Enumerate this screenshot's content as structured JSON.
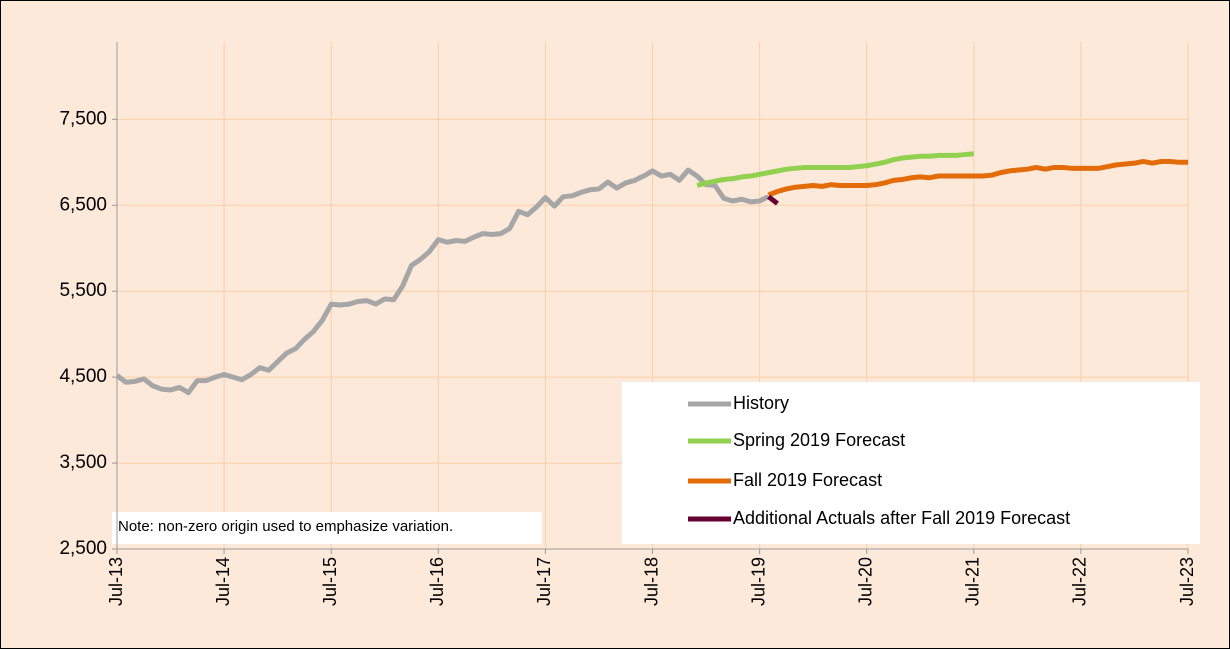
{
  "chart_data": {
    "type": "line",
    "note": "Note: non-zero origin used to emphasize variation.",
    "categories": [
      "Jul-13",
      null,
      null,
      null,
      null,
      null,
      null,
      null,
      null,
      null,
      null,
      null,
      "Jul-14",
      null,
      null,
      null,
      null,
      null,
      null,
      null,
      null,
      null,
      null,
      null,
      "Jul-15",
      null,
      null,
      null,
      null,
      null,
      null,
      null,
      null,
      null,
      null,
      null,
      "Jul-16",
      null,
      null,
      null,
      null,
      null,
      null,
      null,
      null,
      null,
      null,
      null,
      "Jul-17",
      null,
      null,
      null,
      null,
      null,
      null,
      null,
      null,
      null,
      null,
      null,
      "Jul-18",
      null,
      null,
      null,
      null,
      null,
      null,
      null,
      null,
      null,
      null,
      null,
      "Jul-19",
      null,
      null,
      null,
      null,
      null,
      null,
      null,
      null,
      null,
      null,
      null,
      "Jul-20",
      null,
      null,
      null,
      null,
      null,
      null,
      null,
      null,
      null,
      null,
      null,
      "Jul-21",
      null,
      null,
      null,
      null,
      null,
      null,
      null,
      null,
      null,
      null,
      null,
      "Jul-22",
      null,
      null,
      null,
      null,
      null,
      null,
      null,
      null,
      null,
      null,
      null,
      "Jul-23"
    ],
    "series": [
      {
        "name": "History",
        "color": "#a6a6a6",
        "values": [
          4520,
          4440,
          4450,
          4480,
          4400,
          4360,
          4350,
          4380,
          4320,
          4460,
          4460,
          4500,
          4530,
          4500,
          4470,
          4530,
          4610,
          4580,
          4680,
          4780,
          4830,
          4940,
          5030,
          5160,
          5350,
          5340,
          5350,
          5380,
          5390,
          5350,
          5410,
          5400,
          5560,
          5800,
          5870,
          5960,
          6100,
          6070,
          6090,
          6080,
          6130,
          6170,
          6160,
          6170,
          6230,
          6430,
          6390,
          6480,
          6590,
          6490,
          6600,
          6610,
          6650,
          6680,
          6690,
          6770,
          6700,
          6760,
          6790,
          6840,
          6900,
          6840,
          6860,
          6790,
          6910,
          6840,
          6740,
          6730,
          6580,
          6550,
          6570,
          6540,
          6550,
          6600,
          null,
          null,
          null,
          null,
          null,
          null,
          null,
          null,
          null,
          null,
          null,
          null,
          null,
          null,
          null,
          null,
          null,
          null,
          null,
          null,
          null,
          null,
          null,
          null,
          null,
          null,
          null,
          null,
          null,
          null,
          null,
          null,
          null,
          null,
          null,
          null,
          null,
          null,
          null,
          null,
          null,
          null,
          null,
          null,
          null,
          null,
          null
        ]
      },
      {
        "name": "Spring 2019 Forecast",
        "color": "#92d050",
        "values": [
          null,
          null,
          null,
          null,
          null,
          null,
          null,
          null,
          null,
          null,
          null,
          null,
          null,
          null,
          null,
          null,
          null,
          null,
          null,
          null,
          null,
          null,
          null,
          null,
          null,
          null,
          null,
          null,
          null,
          null,
          null,
          null,
          null,
          null,
          null,
          null,
          null,
          null,
          null,
          null,
          null,
          null,
          null,
          null,
          null,
          null,
          null,
          null,
          null,
          null,
          null,
          null,
          null,
          null,
          null,
          null,
          null,
          null,
          null,
          null,
          null,
          null,
          null,
          null,
          null,
          6730,
          6760,
          6780,
          6800,
          6810,
          6830,
          6840,
          6860,
          6880,
          6900,
          6920,
          6930,
          6940,
          6940,
          6940,
          6940,
          6940,
          6940,
          6950,
          6960,
          6980,
          7000,
          7030,
          7050,
          7060,
          7070,
          7070,
          7080,
          7080,
          7080,
          7090,
          7100,
          null,
          null,
          null,
          null,
          null,
          null,
          null,
          null,
          null,
          null,
          null,
          null,
          null,
          null,
          null,
          null,
          null,
          null,
          null,
          null,
          null,
          null,
          null,
          null
        ]
      },
      {
        "name": "Fall 2019 Forecast",
        "color": "#e36c09",
        "values": [
          null,
          null,
          null,
          null,
          null,
          null,
          null,
          null,
          null,
          null,
          null,
          null,
          null,
          null,
          null,
          null,
          null,
          null,
          null,
          null,
          null,
          null,
          null,
          null,
          null,
          null,
          null,
          null,
          null,
          null,
          null,
          null,
          null,
          null,
          null,
          null,
          null,
          null,
          null,
          null,
          null,
          null,
          null,
          null,
          null,
          null,
          null,
          null,
          null,
          null,
          null,
          null,
          null,
          null,
          null,
          null,
          null,
          null,
          null,
          null,
          null,
          null,
          null,
          null,
          null,
          null,
          null,
          null,
          null,
          null,
          null,
          null,
          null,
          6620,
          6660,
          6690,
          6710,
          6720,
          6730,
          6720,
          6740,
          6730,
          6730,
          6730,
          6730,
          6740,
          6760,
          6790,
          6800,
          6820,
          6830,
          6820,
          6840,
          6840,
          6840,
          6840,
          6840,
          6840,
          6850,
          6880,
          6900,
          6910,
          6920,
          6940,
          6920,
          6940,
          6940,
          6930,
          6930,
          6930,
          6930,
          6950,
          6970,
          6980,
          6990,
          7010,
          6990,
          7010,
          7010,
          7000,
          7000
        ]
      },
      {
        "name": "Additional Actuals after Fall 2019 Forecast",
        "color": "#660033",
        "values": [
          null,
          null,
          null,
          null,
          null,
          null,
          null,
          null,
          null,
          null,
          null,
          null,
          null,
          null,
          null,
          null,
          null,
          null,
          null,
          null,
          null,
          null,
          null,
          null,
          null,
          null,
          null,
          null,
          null,
          null,
          null,
          null,
          null,
          null,
          null,
          null,
          null,
          null,
          null,
          null,
          null,
          null,
          null,
          null,
          null,
          null,
          null,
          null,
          null,
          null,
          null,
          null,
          null,
          null,
          null,
          null,
          null,
          null,
          null,
          null,
          null,
          null,
          null,
          null,
          null,
          null,
          null,
          null,
          null,
          null,
          null,
          null,
          null,
          6600,
          6520,
          null,
          null,
          null,
          null,
          null,
          null,
          null,
          null,
          null,
          null,
          null,
          null,
          null,
          null,
          null,
          null,
          null,
          null,
          null,
          null,
          null,
          null,
          null,
          null,
          null,
          null,
          null,
          null,
          null,
          null,
          null,
          null,
          null,
          null,
          null,
          null,
          null,
          null,
          null,
          null,
          null,
          null,
          null,
          null,
          null,
          null
        ]
      }
    ],
    "ylim": [
      2500,
      8400
    ],
    "yticks": [
      {
        "value": 2500,
        "label": "2,500"
      },
      {
        "value": 3500,
        "label": "3,500"
      },
      {
        "value": 4500,
        "label": "4,500"
      },
      {
        "value": 5500,
        "label": "5,500"
      },
      {
        "value": 6500,
        "label": "6,500"
      },
      {
        "value": 7500,
        "label": "7,500"
      }
    ],
    "grid": true,
    "legend": "lower right"
  }
}
